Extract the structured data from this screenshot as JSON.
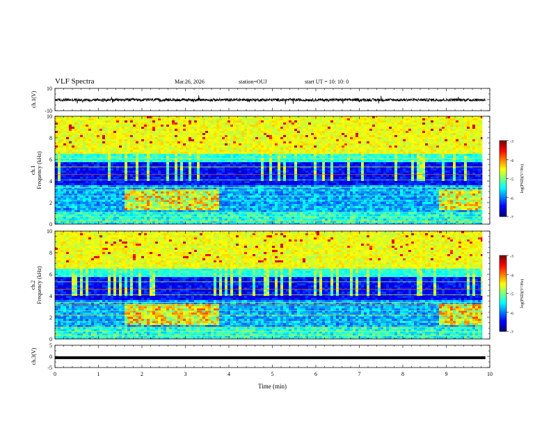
{
  "header": {
    "title": "VLF Spectra",
    "date": "Mar.26, 2026",
    "station": "station=OUJ",
    "start": "start  UT  =   10: 10: 0"
  },
  "chart_data": [
    {
      "type": "line",
      "title": "",
      "xlabel": "",
      "ylabel": "ch.1(V)",
      "xlim": [
        0,
        10
      ],
      "ylim": [
        -10,
        10
      ],
      "ytick_labels": [
        "10",
        "-10"
      ],
      "series": [
        {
          "name": "ch.1 waveform",
          "description": "noisy waveform centred near 0 V"
        }
      ]
    },
    {
      "type": "heatmap",
      "title": "",
      "xlabel": "",
      "ylabel": "ch.1",
      "ylabel2": "Frequency (kHz)",
      "xlim": [
        0,
        10
      ],
      "ylim": [
        0,
        10
      ],
      "data_xmax": 9.83,
      "ytick_labels": [
        "0",
        "2",
        "4",
        "6",
        "8",
        "10"
      ],
      "colorbar": {
        "label": "log(PSD)(V²/Hz)",
        "range": [
          -7,
          -3
        ],
        "tick_labels": [
          "-3",
          "-4",
          "-5",
          "-6",
          "-7"
        ]
      }
    },
    {
      "type": "heatmap",
      "title": "",
      "xlabel": "",
      "ylabel": "ch.2",
      "ylabel2": "Frequency (kHz)",
      "xlim": [
        0,
        10
      ],
      "ylim": [
        0,
        10
      ],
      "data_xmax": 9.83,
      "ytick_labels": [
        "0",
        "2",
        "4",
        "6",
        "8",
        "10"
      ],
      "colorbar": {
        "label": "log(PSD)(V²/Hz)",
        "range": [
          -7,
          -3
        ],
        "tick_labels": [
          "-3",
          "-4",
          "-5",
          "-6",
          "-7"
        ]
      }
    },
    {
      "type": "line",
      "title": "",
      "xlabel": "Time  (min)",
      "ylabel": "ch.3(V)",
      "xlim": [
        0,
        10
      ],
      "ylim": [
        -5,
        5
      ],
      "ytick_labels": [
        "5",
        "0",
        "-5"
      ],
      "xtick_labels": [
        "0",
        "1",
        "2",
        "3",
        "4",
        "5",
        "6",
        "7",
        "8",
        "9",
        "10"
      ],
      "series": [
        {
          "name": "ch.3 waveform",
          "description": "flat line near -0.5 V"
        }
      ]
    }
  ]
}
